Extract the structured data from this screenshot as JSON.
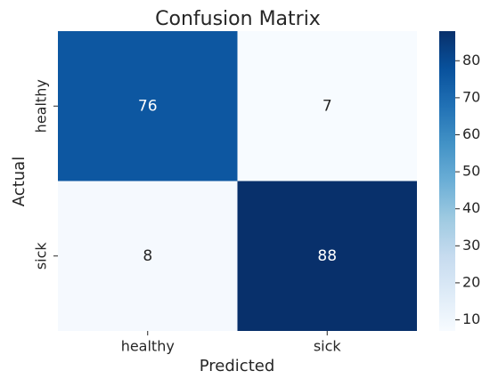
{
  "chart_data": {
    "type": "heatmap",
    "title": "Confusion Matrix",
    "x_label": "Predicted",
    "y_label": "Actual",
    "x_categories": [
      "healthy",
      "sick"
    ],
    "y_categories": [
      "healthy",
      "sick"
    ],
    "values": [
      [
        76,
        7
      ],
      [
        8,
        88
      ]
    ],
    "colors": [
      "#f7fbff",
      "#deebf7",
      "#c6dbef",
      "#9ecae1",
      "#6baed6",
      "#4292c6",
      "#2171b5",
      "#08519c",
      "#08306b"
    ],
    "clim": [
      7,
      88
    ],
    "colorbar_ticks": [
      10,
      20,
      30,
      40,
      50,
      60,
      70,
      80
    ]
  }
}
